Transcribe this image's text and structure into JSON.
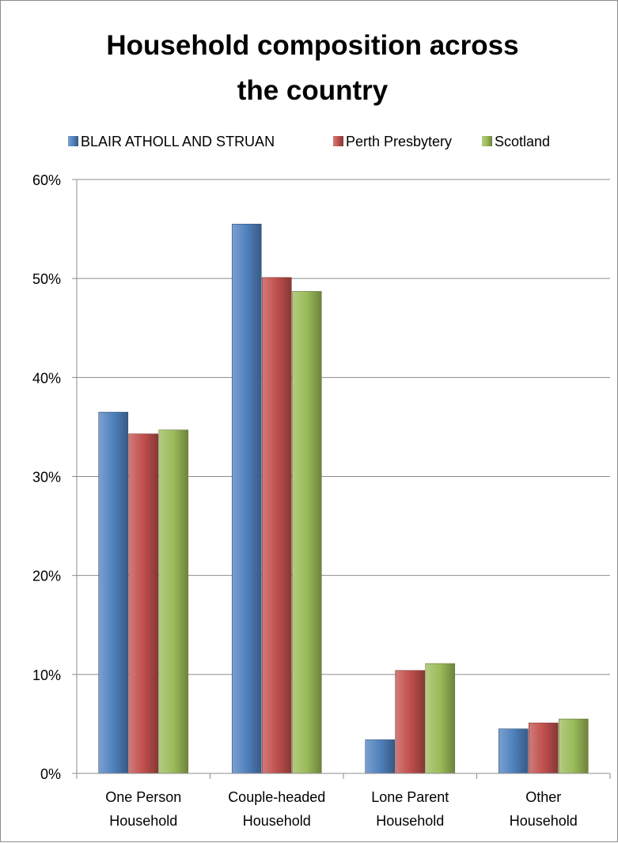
{
  "chart_data": {
    "type": "bar",
    "title_lines": [
      "Household composition across",
      "the country"
    ],
    "categories": [
      [
        "One Person",
        "Household"
      ],
      [
        "Couple-headed",
        "Household"
      ],
      [
        "Lone Parent",
        "Household"
      ],
      [
        "Other",
        "Household"
      ]
    ],
    "series": [
      {
        "name": "BLAIR ATHOLL AND STRUAN",
        "color": "#4F81BD",
        "values": [
          36.5,
          55.5,
          3.4,
          4.5
        ]
      },
      {
        "name": "Perth Presbytery",
        "color": "#C0504D",
        "values": [
          34.3,
          50.1,
          10.4,
          5.1
        ]
      },
      {
        "name": "Scotland",
        "color": "#9BBB59",
        "values": [
          34.7,
          48.7,
          11.1,
          5.5
        ]
      }
    ],
    "y_ticks": [
      "0%",
      "10%",
      "20%",
      "30%",
      "40%",
      "50%",
      "60%"
    ],
    "ylim": [
      0,
      60
    ],
    "grid": true,
    "legend_position": "top"
  }
}
